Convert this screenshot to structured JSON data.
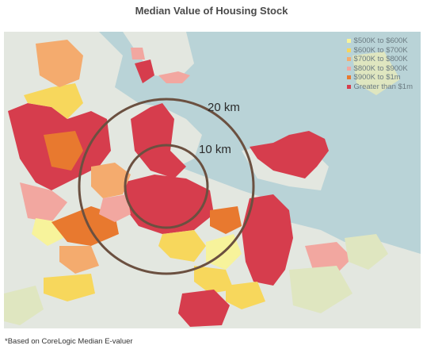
{
  "title": "Median Value of Housing Stock",
  "footnote": "*Based on CoreLogic Median E-valuer",
  "legend": [
    {
      "label": "$500K to $600K",
      "color": "#f7f39b"
    },
    {
      "label": "$600K to $700K",
      "color": "#f7d75c"
    },
    {
      "label": "$700K to $800K",
      "color": "#f4ab6e"
    },
    {
      "label": "$800K to $900K",
      "color": "#f2a7a0"
    },
    {
      "label": "$900K to $1m",
      "color": "#e8792f"
    },
    {
      "label": "Greater than $1m",
      "color": "#d63d4d"
    }
  ],
  "rings": [
    {
      "label": "20 km",
      "radius_km": 20
    },
    {
      "label": "10 km",
      "radius_km": 10
    }
  ],
  "colors": {
    "water": "#b9d3d7",
    "land": "#e4e8e1",
    "ring": "#6b5040"
  }
}
